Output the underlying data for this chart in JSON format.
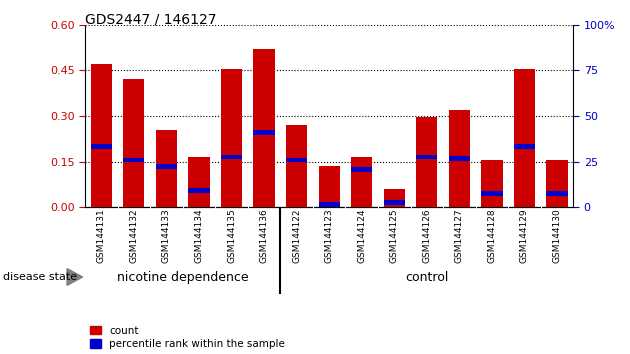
{
  "title": "GDS2447 / 146127",
  "categories": [
    "GSM144131",
    "GSM144132",
    "GSM144133",
    "GSM144134",
    "GSM144135",
    "GSM144136",
    "GSM144122",
    "GSM144123",
    "GSM144124",
    "GSM144125",
    "GSM144126",
    "GSM144127",
    "GSM144128",
    "GSM144129",
    "GSM144130"
  ],
  "count_values": [
    0.47,
    0.42,
    0.255,
    0.165,
    0.455,
    0.52,
    0.27,
    0.135,
    0.165,
    0.06,
    0.295,
    0.32,
    0.155,
    0.455,
    0.155
  ],
  "pct_values": [
    0.2,
    0.155,
    0.135,
    0.055,
    0.165,
    0.245,
    0.155,
    0.008,
    0.125,
    0.015,
    0.165,
    0.16,
    0.045,
    0.2,
    0.045
  ],
  "ylim_left": [
    0,
    0.6
  ],
  "ylim_right": [
    0,
    100
  ],
  "yticks_left": [
    0,
    0.15,
    0.3,
    0.45,
    0.6
  ],
  "yticks_right": [
    0,
    25,
    50,
    75,
    100
  ],
  "bar_color": "#cc0000",
  "pct_color": "#0000cc",
  "bar_width": 0.65,
  "n_nicotine": 6,
  "n_control": 9,
  "nicotine_label": "nicotine dependence",
  "control_label": "control",
  "disease_state_label": "disease state",
  "legend_count": "count",
  "legend_pct": "percentile rank within the sample",
  "green_color": "#90ee90",
  "gray_color": "#c8c8c8",
  "tick_color_left": "#cc0000",
  "tick_color_right": "#0000cc",
  "title_fontsize": 10,
  "tick_fontsize": 8,
  "label_fontsize": 8.5,
  "pct_bar_height": 0.016
}
